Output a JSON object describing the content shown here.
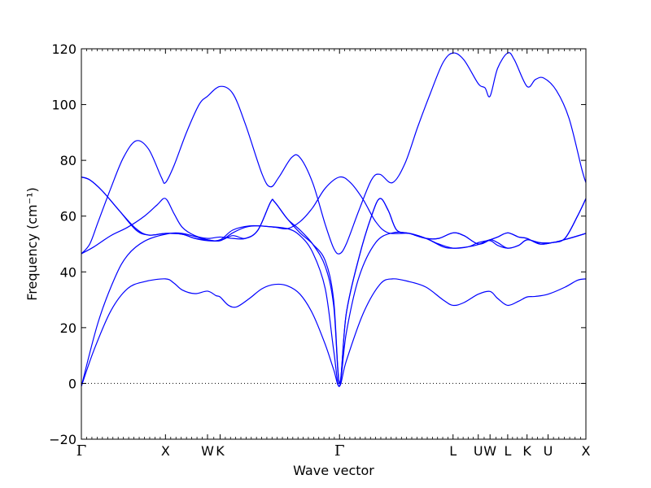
{
  "chart_data": {
    "type": "line",
    "title": "",
    "xlabel": "Wave vector",
    "ylabel": "Frequency (cm⁻¹)",
    "ylim": [
      -20,
      120
    ],
    "yticks": [
      -20,
      0,
      20,
      40,
      60,
      80,
      100,
      120
    ],
    "ytick_labels": [
      "−20",
      "0",
      "20",
      "40",
      "60",
      "80",
      "100",
      "120"
    ],
    "xlim": [
      0,
      6.0
    ],
    "hsym": [
      {
        "label": "Γ",
        "x": 0.0
      },
      {
        "label": "X",
        "x": 1.0
      },
      {
        "label": "W",
        "x": 1.5
      },
      {
        "label": "K",
        "x": 1.65
      },
      {
        "label": "Γ",
        "x": 3.07
      },
      {
        "label": "L",
        "x": 4.42
      },
      {
        "label": "U",
        "x": 4.72
      },
      {
        "label": "W",
        "x": 4.86
      },
      {
        "label": "L",
        "x": 5.07
      },
      {
        "label": "K",
        "x": 5.3
      },
      {
        "label": "U",
        "x": 5.55
      },
      {
        "label": "X",
        "x": 6.0
      }
    ],
    "zero_line": {
      "y": 0,
      "style": "dotted"
    },
    "line_color": "#0000ff",
    "series": [
      {
        "points": [
          [
            0,
            -1
          ],
          [
            0.15,
            12
          ],
          [
            0.35,
            26
          ],
          [
            0.55,
            34
          ],
          [
            0.75,
            36.5
          ],
          [
            1.0,
            37.5
          ],
          [
            1.1,
            36
          ],
          [
            1.2,
            33.5
          ],
          [
            1.35,
            32.2
          ],
          [
            1.5,
            33.1
          ],
          [
            1.6,
            31.5
          ],
          [
            1.65,
            31
          ],
          [
            1.75,
            28
          ],
          [
            1.85,
            27.5
          ],
          [
            2.0,
            30.5
          ],
          [
            2.15,
            34
          ],
          [
            2.3,
            35.5
          ],
          [
            2.45,
            35
          ],
          [
            2.6,
            32
          ],
          [
            2.75,
            25
          ],
          [
            2.9,
            14
          ],
          [
            3.0,
            5
          ],
          [
            3.07,
            -1
          ],
          [
            3.15,
            8
          ],
          [
            3.35,
            25
          ],
          [
            3.55,
            35.5
          ],
          [
            3.7,
            37.5
          ],
          [
            3.9,
            36.5
          ],
          [
            4.1,
            34.5
          ],
          [
            4.3,
            30
          ],
          [
            4.42,
            28
          ],
          [
            4.55,
            29
          ],
          [
            4.72,
            32
          ],
          [
            4.86,
            33
          ],
          [
            4.95,
            30.5
          ],
          [
            5.07,
            28
          ],
          [
            5.2,
            29.5
          ],
          [
            5.3,
            31
          ],
          [
            5.4,
            31.2
          ],
          [
            5.55,
            32
          ],
          [
            5.75,
            34.5
          ],
          [
            5.9,
            37
          ],
          [
            6.0,
            37.5
          ]
        ]
      },
      {
        "points": [
          [
            0,
            -1
          ],
          [
            0.2,
            22
          ],
          [
            0.4,
            38
          ],
          [
            0.55,
            46
          ],
          [
            0.75,
            51
          ],
          [
            1.0,
            53.5
          ],
          [
            1.2,
            53.8
          ],
          [
            1.5,
            51.5
          ],
          [
            1.65,
            51.5
          ],
          [
            1.8,
            55
          ],
          [
            2.0,
            56.5
          ],
          [
            2.2,
            56.3
          ],
          [
            2.45,
            55.5
          ],
          [
            2.6,
            53
          ],
          [
            2.75,
            47
          ],
          [
            2.9,
            34
          ],
          [
            3.0,
            12
          ],
          [
            3.07,
            -1
          ],
          [
            3.15,
            18
          ],
          [
            3.3,
            38
          ],
          [
            3.5,
            50.5
          ],
          [
            3.7,
            54
          ],
          [
            3.9,
            53.8
          ],
          [
            4.1,
            52
          ],
          [
            4.25,
            50
          ],
          [
            4.42,
            48.5
          ],
          [
            4.6,
            49
          ],
          [
            4.72,
            50.5
          ],
          [
            4.86,
            51.2
          ],
          [
            4.95,
            49.5
          ],
          [
            5.07,
            48.5
          ],
          [
            5.2,
            49.5
          ],
          [
            5.3,
            51.5
          ],
          [
            5.45,
            50.5
          ],
          [
            5.6,
            50.5
          ],
          [
            5.8,
            52
          ],
          [
            6.0,
            53.8
          ]
        ]
      },
      {
        "points": [
          [
            0,
            46.5
          ],
          [
            0.1,
            50
          ],
          [
            0.2,
            58
          ],
          [
            0.35,
            70
          ],
          [
            0.5,
            81
          ],
          [
            0.65,
            87
          ],
          [
            0.8,
            84
          ],
          [
            0.95,
            74
          ],
          [
            1.0,
            72
          ],
          [
            1.1,
            78
          ],
          [
            1.25,
            90
          ],
          [
            1.4,
            100
          ],
          [
            1.5,
            103
          ],
          [
            1.65,
            106.5
          ],
          [
            1.8,
            104
          ],
          [
            1.95,
            93
          ],
          [
            2.15,
            75
          ],
          [
            2.25,
            70.5
          ],
          [
            2.35,
            74
          ],
          [
            2.5,
            81
          ],
          [
            2.6,
            81
          ],
          [
            2.75,
            72
          ],
          [
            2.9,
            57
          ],
          [
            3.0,
            48.5
          ],
          [
            3.07,
            46.5
          ],
          [
            3.15,
            50
          ],
          [
            3.3,
            62
          ],
          [
            3.45,
            73
          ],
          [
            3.55,
            75
          ],
          [
            3.7,
            72
          ],
          [
            3.85,
            79
          ],
          [
            4.0,
            92
          ],
          [
            4.15,
            104
          ],
          [
            4.3,
            115
          ],
          [
            4.42,
            118.5
          ],
          [
            4.55,
            116
          ],
          [
            4.72,
            107.5
          ],
          [
            4.8,
            106
          ],
          [
            4.86,
            103
          ],
          [
            4.95,
            113
          ],
          [
            5.07,
            118.5
          ],
          [
            5.15,
            116
          ],
          [
            5.3,
            106.5
          ],
          [
            5.4,
            109
          ],
          [
            5.5,
            109.5
          ],
          [
            5.65,
            105
          ],
          [
            5.8,
            95
          ],
          [
            5.95,
            77
          ],
          [
            6.0,
            72
          ]
        ]
      },
      {
        "points": [
          [
            0,
            74
          ],
          [
            0.1,
            73
          ],
          [
            0.25,
            69
          ],
          [
            0.45,
            62
          ],
          [
            0.65,
            55.5
          ],
          [
            0.8,
            53.2
          ],
          [
            1.0,
            53.8
          ],
          [
            1.2,
            53.5
          ],
          [
            1.35,
            52
          ],
          [
            1.5,
            51.5
          ],
          [
            1.65,
            51.2
          ],
          [
            1.8,
            54
          ],
          [
            1.95,
            56
          ],
          [
            2.1,
            56.5
          ],
          [
            2.3,
            56
          ],
          [
            2.45,
            55.5
          ],
          [
            2.6,
            58
          ],
          [
            2.75,
            63
          ],
          [
            2.9,
            70
          ],
          [
            3.07,
            74
          ],
          [
            3.2,
            72
          ],
          [
            3.35,
            66
          ],
          [
            3.5,
            58
          ],
          [
            3.65,
            54
          ],
          [
            3.9,
            53.8
          ],
          [
            4.1,
            52
          ],
          [
            4.3,
            49
          ],
          [
            4.42,
            48.5
          ],
          [
            4.6,
            49
          ],
          [
            4.72,
            49.8
          ],
          [
            4.86,
            51.5
          ],
          [
            4.95,
            50.5
          ],
          [
            5.07,
            48.5
          ],
          [
            5.2,
            49.5
          ],
          [
            5.3,
            51.5
          ],
          [
            5.45,
            50.5
          ],
          [
            5.6,
            50.5
          ],
          [
            5.8,
            52
          ],
          [
            6.0,
            53.8
          ]
        ]
      },
      {
        "points": [
          [
            0,
            74
          ],
          [
            0.1,
            73
          ],
          [
            0.25,
            69
          ],
          [
            0.45,
            62
          ],
          [
            0.65,
            55
          ],
          [
            0.8,
            53.2
          ],
          [
            1.0,
            53.8
          ],
          [
            1.2,
            53.5
          ],
          [
            1.35,
            52
          ],
          [
            1.5,
            51.2
          ],
          [
            1.65,
            51.2
          ],
          [
            1.8,
            53
          ],
          [
            1.95,
            52
          ],
          [
            2.1,
            55
          ],
          [
            2.25,
            65
          ],
          [
            2.3,
            65
          ],
          [
            2.45,
            59
          ],
          [
            2.6,
            54
          ],
          [
            2.75,
            50
          ],
          [
            2.9,
            44
          ],
          [
            3.0,
            30
          ],
          [
            3.07,
            0
          ],
          [
            3.15,
            25
          ],
          [
            3.3,
            45
          ],
          [
            3.45,
            60
          ],
          [
            3.55,
            66.3
          ],
          [
            3.65,
            62
          ],
          [
            3.75,
            55
          ],
          [
            3.9,
            53.8
          ],
          [
            4.1,
            52
          ],
          [
            4.25,
            52
          ],
          [
            4.42,
            54
          ],
          [
            4.55,
            53
          ],
          [
            4.72,
            50
          ],
          [
            4.86,
            51.5
          ],
          [
            4.95,
            52.5
          ],
          [
            5.07,
            54
          ],
          [
            5.2,
            52.5
          ],
          [
            5.3,
            52
          ],
          [
            5.45,
            50
          ],
          [
            5.6,
            50.5
          ],
          [
            5.75,
            52
          ],
          [
            5.9,
            60
          ],
          [
            6.0,
            66.3
          ]
        ]
      },
      {
        "points": [
          [
            0,
            46.5
          ],
          [
            0.15,
            49
          ],
          [
            0.35,
            53
          ],
          [
            0.55,
            56
          ],
          [
            0.75,
            60
          ],
          [
            0.9,
            64
          ],
          [
            1.0,
            66.3
          ],
          [
            1.1,
            61
          ],
          [
            1.2,
            56
          ],
          [
            1.35,
            53
          ],
          [
            1.5,
            52
          ],
          [
            1.65,
            52.5
          ],
          [
            1.8,
            52
          ],
          [
            1.95,
            52
          ],
          [
            2.1,
            55
          ],
          [
            2.25,
            65
          ],
          [
            2.3,
            65
          ],
          [
            2.45,
            59
          ],
          [
            2.6,
            55
          ],
          [
            2.75,
            50
          ],
          [
            2.9,
            42
          ],
          [
            3.0,
            28
          ],
          [
            3.07,
            0
          ],
          [
            3.15,
            25
          ],
          [
            3.3,
            45
          ],
          [
            3.45,
            60
          ],
          [
            3.55,
            66.3
          ],
          [
            3.65,
            62
          ],
          [
            3.75,
            55
          ],
          [
            3.9,
            53.8
          ],
          [
            4.1,
            52
          ],
          [
            4.25,
            52
          ],
          [
            4.42,
            54
          ],
          [
            4.55,
            53
          ],
          [
            4.72,
            50
          ],
          [
            4.86,
            51.5
          ],
          [
            4.95,
            52.5
          ],
          [
            5.07,
            54
          ],
          [
            5.2,
            52.5
          ],
          [
            5.3,
            52
          ],
          [
            5.45,
            50
          ],
          [
            5.6,
            50.5
          ],
          [
            5.75,
            52
          ],
          [
            5.9,
            60
          ],
          [
            6.0,
            66.3
          ]
        ]
      }
    ]
  }
}
